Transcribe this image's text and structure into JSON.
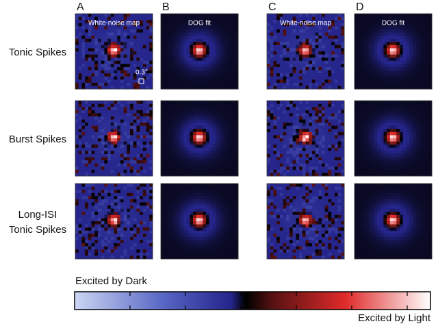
{
  "panels": {
    "letters": [
      "A",
      "B",
      "C",
      "D"
    ],
    "headers": [
      "White-noise map",
      "DOG fit",
      "White-noise map",
      "DOG fit"
    ]
  },
  "rows": [
    {
      "lines": [
        "Tonic Spikes"
      ]
    },
    {
      "lines": [
        "Burst Spikes"
      ]
    },
    {
      "lines": [
        "Long-ISI",
        "Tonic Spikes"
      ]
    }
  ],
  "scale_bar": "0.3°",
  "colorbar": {
    "low_label": "Excited by Dark",
    "high_label": "Excited by Light"
  }
}
